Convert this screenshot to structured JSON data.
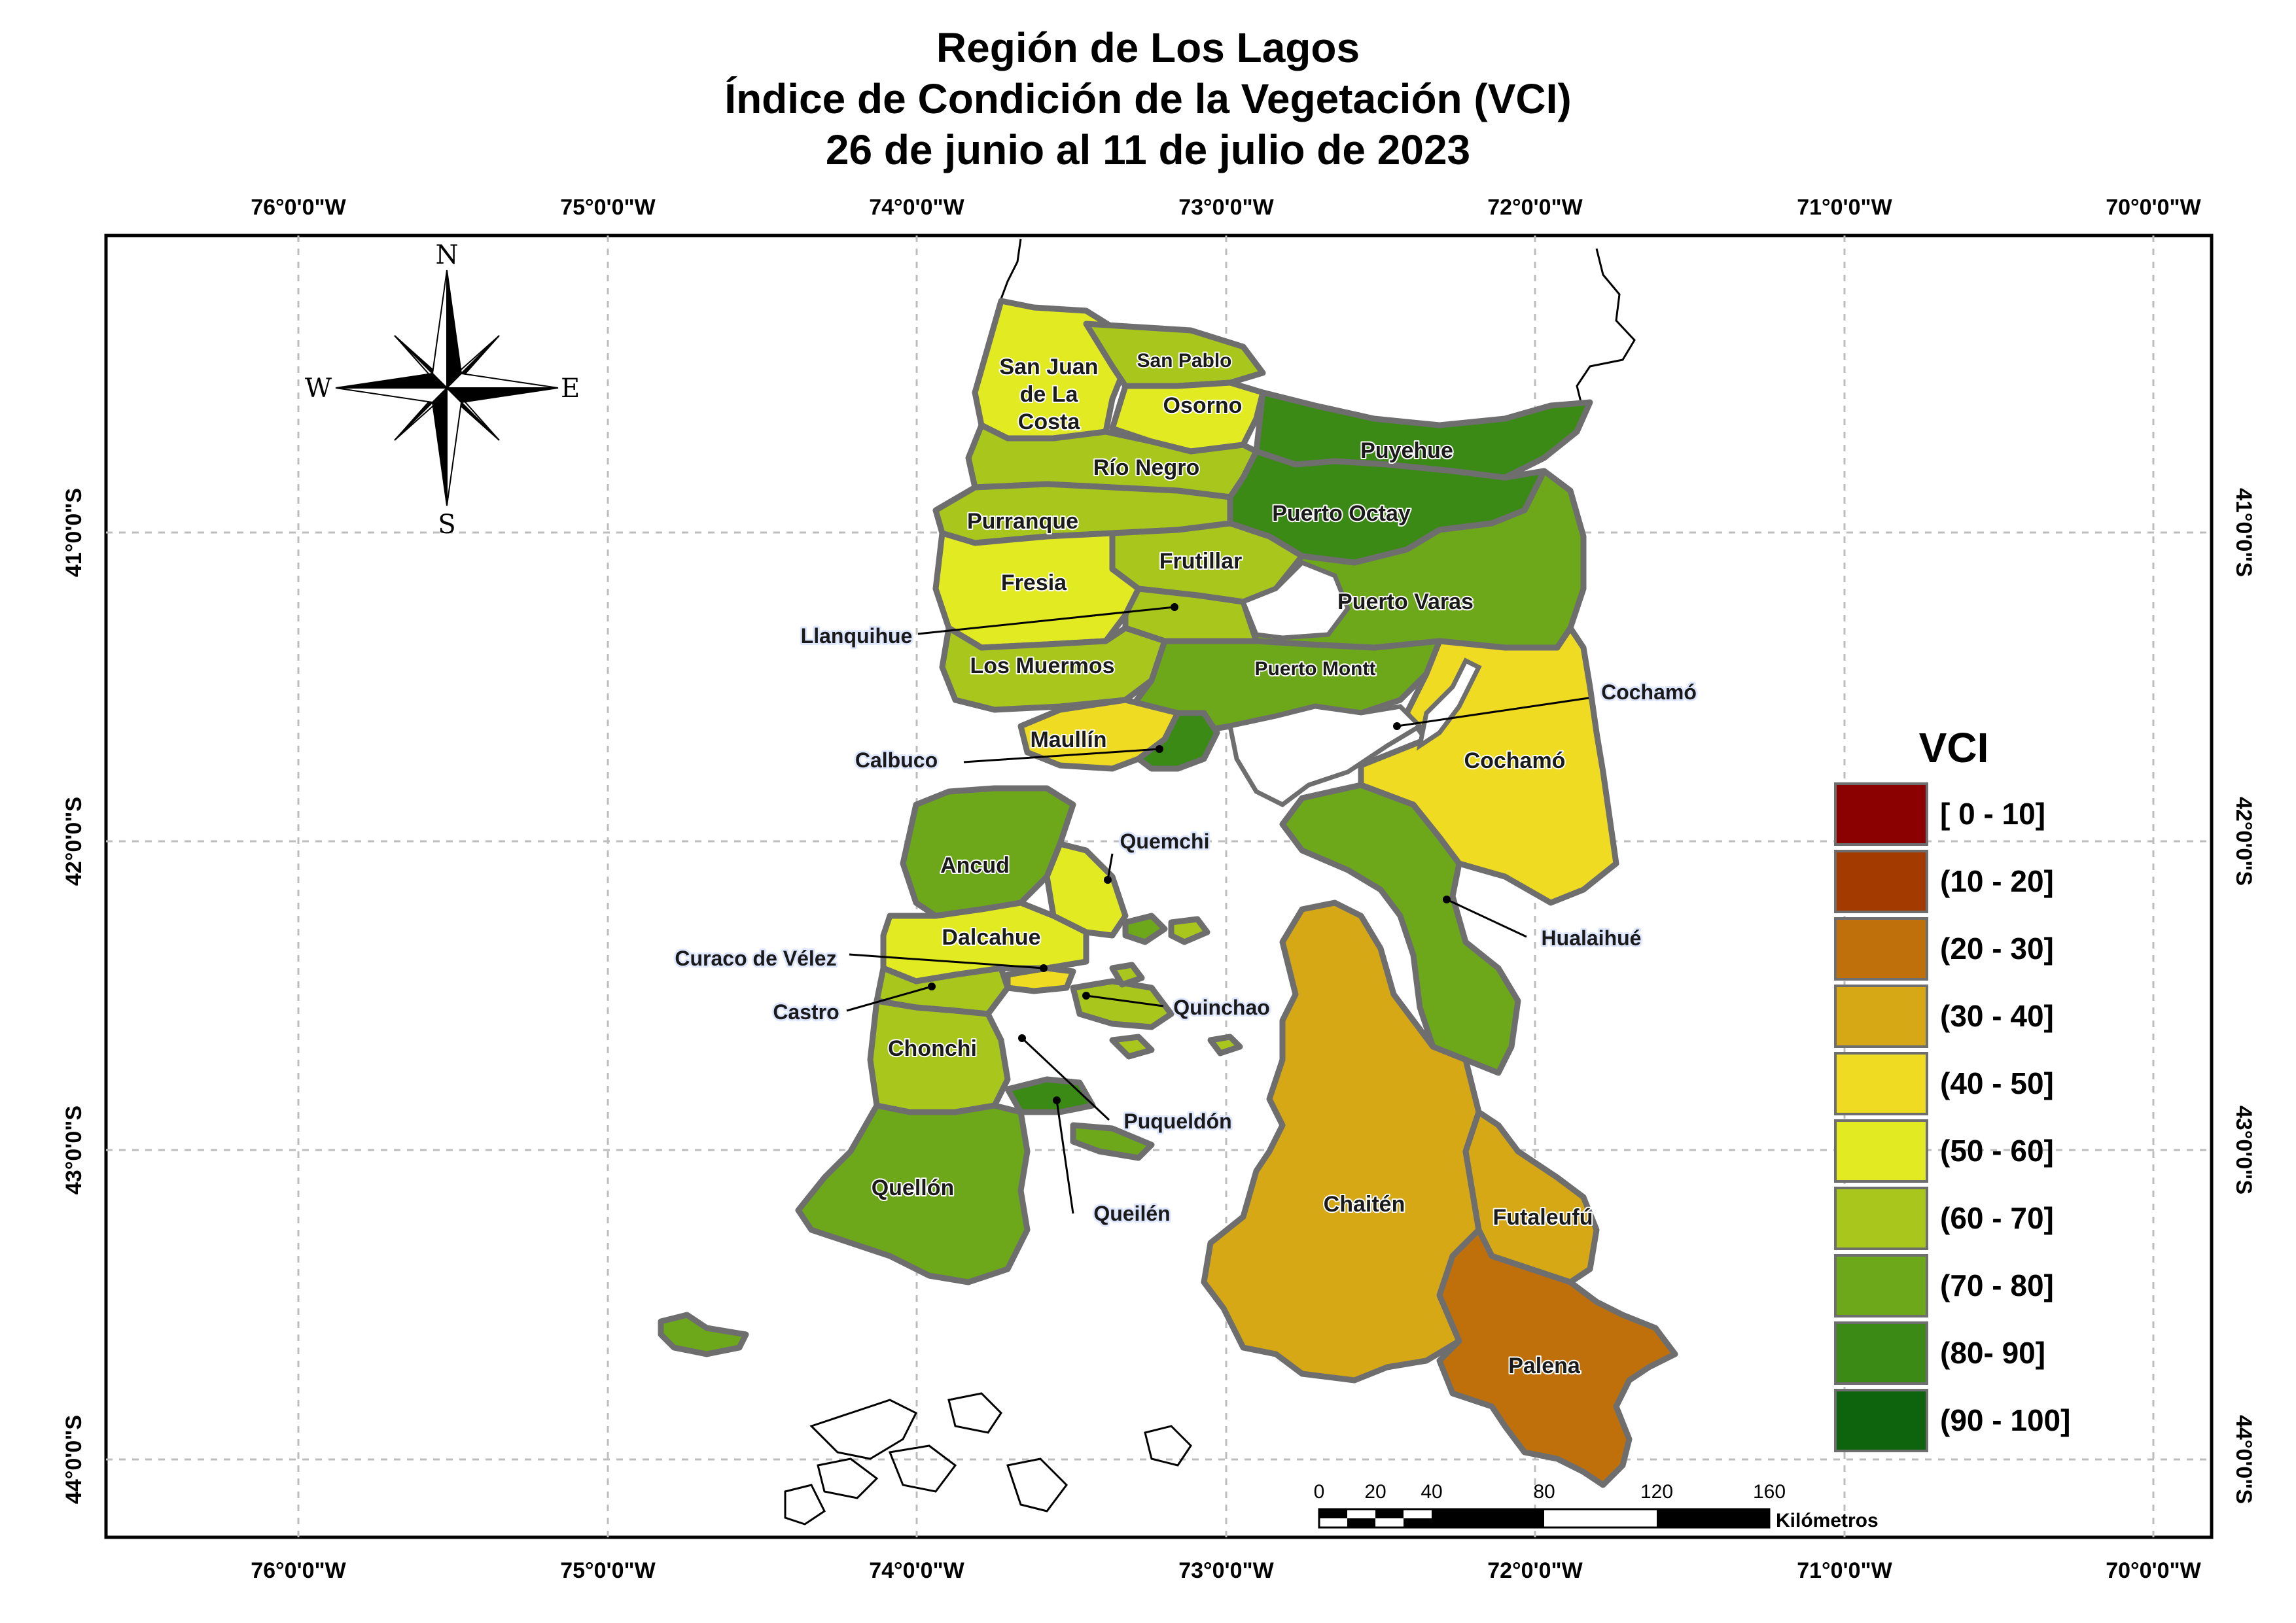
{
  "title": {
    "line1": "Región de Los Lagos",
    "line2": "Índice de Condición de la Vegetación (VCI)",
    "line3": "26 de junio al 11 de julio de 2023"
  },
  "graticule": {
    "lon_labels": [
      "76°0'0\"W",
      "75°0'0\"W",
      "74°0'0\"W",
      "73°0'0\"W",
      "72°0'0\"W",
      "71°0'0\"W",
      "70°0'0\"W"
    ],
    "lat_labels": [
      "41°0'0\"S",
      "42°0'0\"S",
      "43°0'0\"S",
      "44°0'0\"S"
    ]
  },
  "compass": {
    "n": "N",
    "s": "S",
    "e": "E",
    "w": "W"
  },
  "comunas": [
    {
      "name": "San Juan\nde La\nCosta",
      "label": "San Juan de La Costa",
      "class": "50 - 60"
    },
    {
      "name": "San Pablo",
      "class": "60 - 70"
    },
    {
      "name": "Osorno",
      "class": "50 - 60"
    },
    {
      "name": "Puyehue",
      "class": "80- 90"
    },
    {
      "name": "Río Negro",
      "class": "60 - 70"
    },
    {
      "name": "Puerto Octay",
      "class": "80- 90"
    },
    {
      "name": "Purranque",
      "class": "60 - 70"
    },
    {
      "name": "Frutillar",
      "class": "60 - 70"
    },
    {
      "name": "Fresia",
      "class": "50 - 60"
    },
    {
      "name": "Puerto Varas",
      "class": "70 - 80"
    },
    {
      "name": "Llanquihue",
      "class": "60 - 70"
    },
    {
      "name": "Los Muermos",
      "class": "60 - 70"
    },
    {
      "name": "Puerto Montt",
      "class": "70 - 80"
    },
    {
      "name": "Cochamó",
      "class": "40 - 50"
    },
    {
      "name": "Maullín",
      "class": "40 - 50"
    },
    {
      "name": "Calbuco",
      "class": "80- 90"
    },
    {
      "name": "Ancud",
      "class": "70 - 80"
    },
    {
      "name": "Quemchi",
      "class": "50 - 60"
    },
    {
      "name": "Hualaihué",
      "class": "70 - 80"
    },
    {
      "name": "Dalcahue",
      "class": "50 - 60"
    },
    {
      "name": "Curaco de Vélez",
      "class": "40 - 50"
    },
    {
      "name": "Castro",
      "class": "60 - 70"
    },
    {
      "name": "Quinchao",
      "class": "60 - 70"
    },
    {
      "name": "Chonchi",
      "class": "60 - 70"
    },
    {
      "name": "Puqueldón",
      "class": "80- 90"
    },
    {
      "name": "Queilén",
      "class": "70 - 80"
    },
    {
      "name": "Quellón",
      "class": "70 - 80"
    },
    {
      "name": "Chaitén",
      "class": "30 - 40"
    },
    {
      "name": "Futaleufú",
      "class": "30 - 40"
    },
    {
      "name": "Palena",
      "class": "20 - 30"
    }
  ],
  "legend": {
    "title": "VCI",
    "items": [
      {
        "label": "[  0 -   10]",
        "color": "#8b0000"
      },
      {
        "label": "(10 -  20]",
        "color": "#a33a00"
      },
      {
        "label": "(20 -   30]",
        "color": "#c0700a"
      },
      {
        "label": "(30 -   40]",
        "color": "#d6a816"
      },
      {
        "label": "(40 -   50]",
        "color": "#efdc22"
      },
      {
        "label": "(50 -   60]",
        "color": "#e2ea22"
      },
      {
        "label": "(60 -   70]",
        "color": "#a9c61c"
      },
      {
        "label": "(70 -   80]",
        "color": "#6da81a"
      },
      {
        "label": "(80-    90]",
        "color": "#3b8a16"
      },
      {
        "label": "(90 - 100]",
        "color": "#0d640c"
      }
    ]
  },
  "scale_bar": {
    "ticks": [
      "0",
      "20",
      "40",
      "80",
      "120",
      "160"
    ],
    "unit": "Kilómetros"
  },
  "colors": {
    "boundary": "#6e6e6e",
    "grid": "#bdbdbd"
  }
}
